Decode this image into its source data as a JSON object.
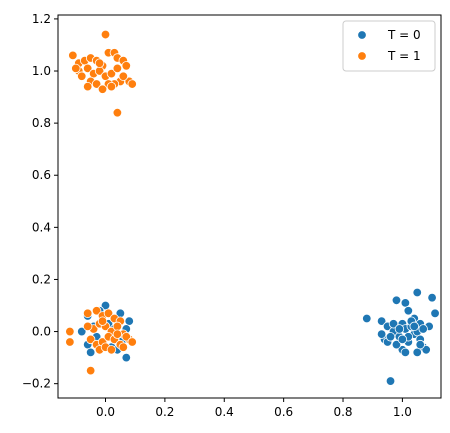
{
  "chart_data": {
    "type": "scatter",
    "title": "",
    "xlabel": "",
    "ylabel": "",
    "xlim": [
      -0.16,
      1.13
    ],
    "ylim": [
      -0.255,
      1.215
    ],
    "xticks": [
      "0.0",
      "0.2",
      "0.4",
      "0.6",
      "0.8",
      "1.0"
    ],
    "xtick_values": [
      0.0,
      0.2,
      0.4,
      0.6,
      0.8,
      1.0
    ],
    "yticks": [
      "−0.2",
      "0.0",
      "0.2",
      "0.4",
      "0.6",
      "0.8",
      "1.0",
      "1.2"
    ],
    "ytick_values": [
      -0.2,
      0.0,
      0.2,
      0.4,
      0.6,
      0.8,
      1.0,
      1.2
    ],
    "grid": false,
    "legend_position": "top-right",
    "series": [
      {
        "name": "T = 0",
        "color": "#1f77b4",
        "points": [
          [
            0.88,
            0.05
          ],
          [
            0.93,
            0.04
          ],
          [
            0.95,
            0.02
          ],
          [
            0.98,
            0.12
          ],
          [
            1.01,
            0.11
          ],
          [
            1.05,
            0.15
          ],
          [
            1.1,
            0.13
          ],
          [
            1.11,
            0.07
          ],
          [
            1.02,
            0.08
          ],
          [
            1.04,
            0.05
          ],
          [
            0.96,
            -0.19
          ],
          [
            0.94,
            -0.03
          ],
          [
            0.97,
            0.0
          ],
          [
            0.99,
            -0.02
          ],
          [
            1.0,
            0.03
          ],
          [
            1.01,
            0.01
          ],
          [
            1.02,
            -0.04
          ],
          [
            1.03,
            0.02
          ],
          [
            1.04,
            -0.01
          ],
          [
            1.05,
            0.0
          ],
          [
            1.06,
            -0.03
          ],
          [
            1.07,
            -0.06
          ],
          [
            1.08,
            -0.07
          ],
          [
            1.0,
            -0.07
          ],
          [
            0.98,
            -0.05
          ],
          [
            1.01,
            -0.08
          ],
          [
            1.05,
            -0.08
          ],
          [
            1.09,
            0.02
          ],
          [
            1.06,
            0.03
          ],
          [
            0.93,
            -0.01
          ],
          [
            0.95,
            -0.04
          ],
          [
            0.97,
            0.03
          ],
          [
            1.03,
            0.04
          ],
          [
            1.07,
            0.01
          ],
          [
            1.02,
            -0.02
          ],
          [
            1.04,
            0.02
          ],
          [
            0.99,
            0.01
          ],
          [
            1.0,
            -0.03
          ],
          [
            1.06,
            -0.05
          ],
          [
            0.96,
            -0.02
          ],
          [
            -0.12,
            -0.04
          ],
          [
            -0.08,
            0.0
          ],
          [
            -0.06,
            -0.05
          ],
          [
            -0.05,
            -0.08
          ],
          [
            0.07,
            -0.1
          ],
          [
            0.08,
            0.04
          ],
          [
            0.0,
            0.1
          ],
          [
            -0.02,
            0.08
          ],
          [
            0.05,
            0.07
          ],
          [
            -0.04,
            0.02
          ],
          [
            0.06,
            -0.03
          ],
          [
            0.02,
            -0.06
          ],
          [
            -0.03,
            -0.02
          ],
          [
            0.01,
            0.03
          ],
          [
            0.04,
            -0.07
          ],
          [
            0.03,
            0.01
          ],
          [
            -0.01,
            -0.04
          ],
          [
            0.07,
            0.01
          ],
          [
            -0.06,
            0.06
          ]
        ]
      },
      {
        "name": "T = 1",
        "color": "#ff7f0e",
        "points": [
          [
            0.0,
            1.14
          ],
          [
            -0.11,
            1.06
          ],
          [
            -0.09,
            1.03
          ],
          [
            -0.07,
            1.04
          ],
          [
            -0.05,
            1.05
          ],
          [
            -0.03,
            1.04
          ],
          [
            -0.01,
            1.02
          ],
          [
            0.01,
            1.07
          ],
          [
            0.03,
            1.07
          ],
          [
            0.04,
            1.05
          ],
          [
            0.06,
            1.04
          ],
          [
            -0.09,
            1.0
          ],
          [
            -0.08,
            0.98
          ],
          [
            -0.06,
            1.01
          ],
          [
            -0.04,
            0.99
          ],
          [
            -0.02,
            1.0
          ],
          [
            0.0,
            0.98
          ],
          [
            0.02,
            0.99
          ],
          [
            0.04,
            1.01
          ],
          [
            0.07,
            1.02
          ],
          [
            0.08,
            0.96
          ],
          [
            0.09,
            0.95
          ],
          [
            0.05,
            0.96
          ],
          [
            0.03,
            0.95
          ],
          [
            -0.05,
            0.96
          ],
          [
            -0.06,
            0.94
          ],
          [
            -0.03,
            0.95
          ],
          [
            0.01,
            0.95
          ],
          [
            -0.01,
            0.93
          ],
          [
            0.04,
            0.84
          ],
          [
            -0.1,
            1.01
          ],
          [
            0.06,
            0.98
          ],
          [
            -0.02,
            1.03
          ],
          [
            0.02,
            0.94
          ],
          [
            -0.05,
            -0.15
          ],
          [
            -0.12,
            -0.04
          ],
          [
            -0.12,
            0.0
          ],
          [
            -0.06,
            0.07
          ],
          [
            -0.03,
            0.08
          ],
          [
            -0.01,
            0.06
          ],
          [
            0.01,
            0.07
          ],
          [
            0.03,
            0.05
          ],
          [
            0.05,
            0.04
          ],
          [
            -0.04,
            0.01
          ],
          [
            -0.02,
            0.03
          ],
          [
            0.0,
            0.02
          ],
          [
            0.02,
            0.0
          ],
          [
            0.04,
            0.02
          ],
          [
            0.06,
            -0.01
          ],
          [
            0.08,
            -0.03
          ],
          [
            -0.05,
            -0.03
          ],
          [
            -0.03,
            -0.05
          ],
          [
            -0.01,
            -0.04
          ],
          [
            0.01,
            -0.02
          ],
          [
            0.03,
            -0.03
          ],
          [
            0.05,
            -0.05
          ],
          [
            0.06,
            -0.06
          ],
          [
            -0.02,
            -0.07
          ],
          [
            0.0,
            -0.06
          ],
          [
            0.02,
            -0.07
          ],
          [
            0.07,
            -0.02
          ],
          [
            -0.06,
            0.02
          ],
          [
            0.04,
            -0.01
          ],
          [
            -0.01,
            0.04
          ],
          [
            0.09,
            -0.04
          ]
        ]
      }
    ]
  }
}
